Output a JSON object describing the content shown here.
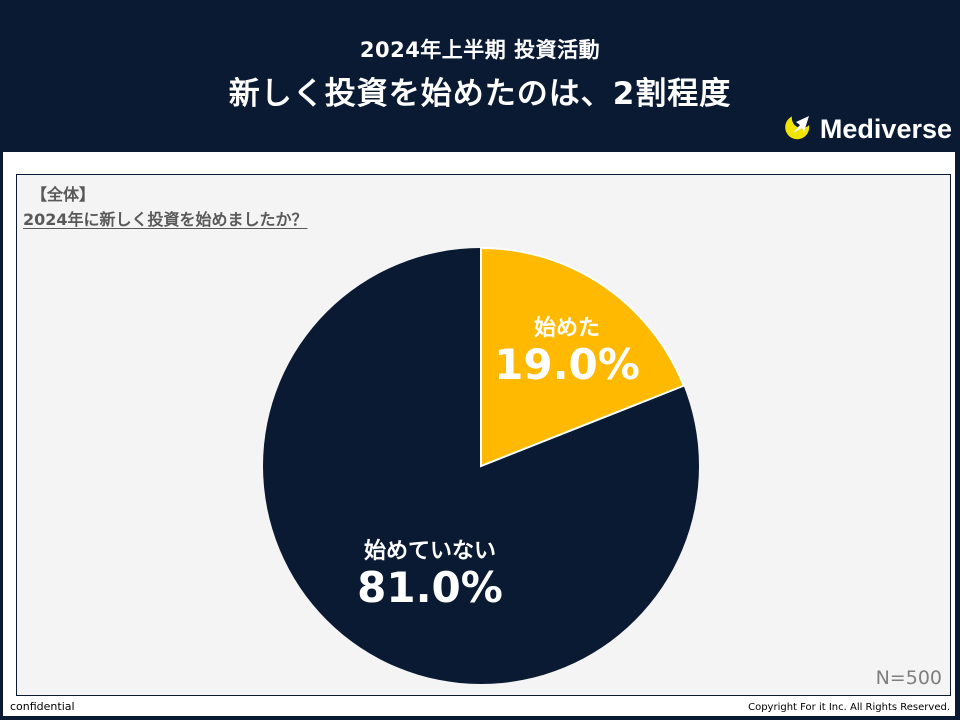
{
  "header": {
    "subtitle": "2024年上半期 投資活動",
    "title": "新しく投資を始めたのは、2割程度",
    "logo_text": "Mediverse",
    "logo_icon": "rocket-crescent-icon"
  },
  "panel": {
    "tag": "【全体】",
    "question": "2024年に新しく投資を始めましたか？",
    "sample_size": "N=500"
  },
  "footer": {
    "left": "confidential",
    "right": "Copyright For it Inc. All Rights Reserved."
  },
  "colors": {
    "navy": "#0b1a33",
    "accent": "#ffb900",
    "panel_bg": "#f4f4f4"
  },
  "chart_data": {
    "type": "pie",
    "title": "2024年に新しく投資を始めましたか？",
    "categories": [
      "始めた",
      "始めていない"
    ],
    "values": [
      19.0,
      81.0
    ],
    "value_labels": [
      "19.0%",
      "81.0%"
    ],
    "colors": [
      "#ffb900",
      "#0b1a33"
    ],
    "start_angle": "12 o'clock, clockwise",
    "legend": "none (labels inside slices)",
    "n": 500
  }
}
